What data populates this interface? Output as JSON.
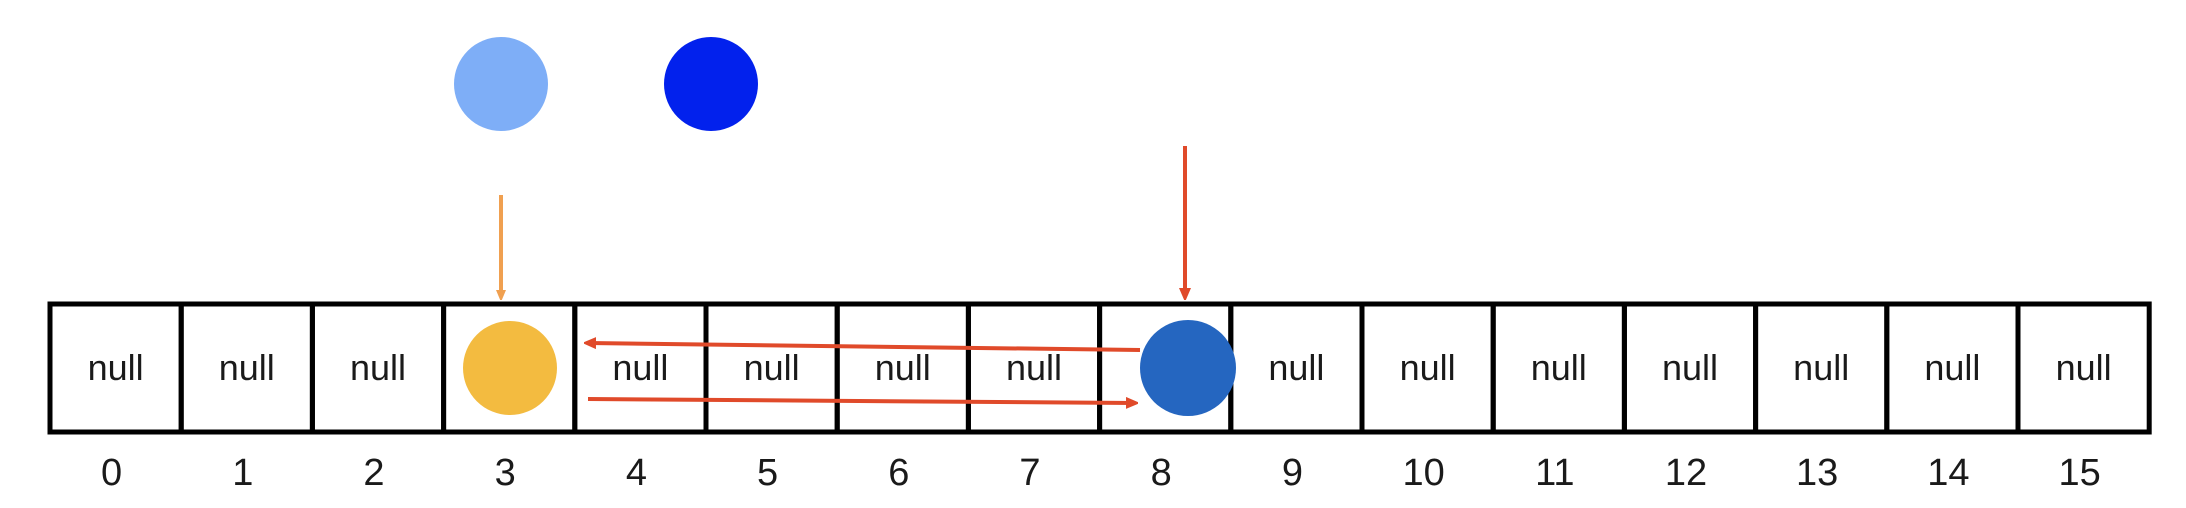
{
  "array": {
    "cells": [
      {
        "index": "0",
        "text": "null"
      },
      {
        "index": "1",
        "text": "null"
      },
      {
        "index": "2",
        "text": "null"
      },
      {
        "index": "3",
        "text": ""
      },
      {
        "index": "4",
        "text": "null"
      },
      {
        "index": "5",
        "text": "null"
      },
      {
        "index": "6",
        "text": "null"
      },
      {
        "index": "7",
        "text": "null"
      },
      {
        "index": "8",
        "text": ""
      },
      {
        "index": "9",
        "text": "null"
      },
      {
        "index": "10",
        "text": "null"
      },
      {
        "index": "11",
        "text": "null"
      },
      {
        "index": "12",
        "text": "null"
      },
      {
        "index": "13",
        "text": "null"
      },
      {
        "index": "14",
        "text": "null"
      },
      {
        "index": "15",
        "text": "null"
      }
    ]
  },
  "colors": {
    "light_blue_dot": "#7eaef7",
    "bright_blue_dot": "#0221ed",
    "orange_dot": "#f3bb40",
    "dark_blue_dot": "#2566c0",
    "orange_arrow": "#f0a050",
    "red_arrow": "#e04a2a",
    "border": "#000000"
  }
}
